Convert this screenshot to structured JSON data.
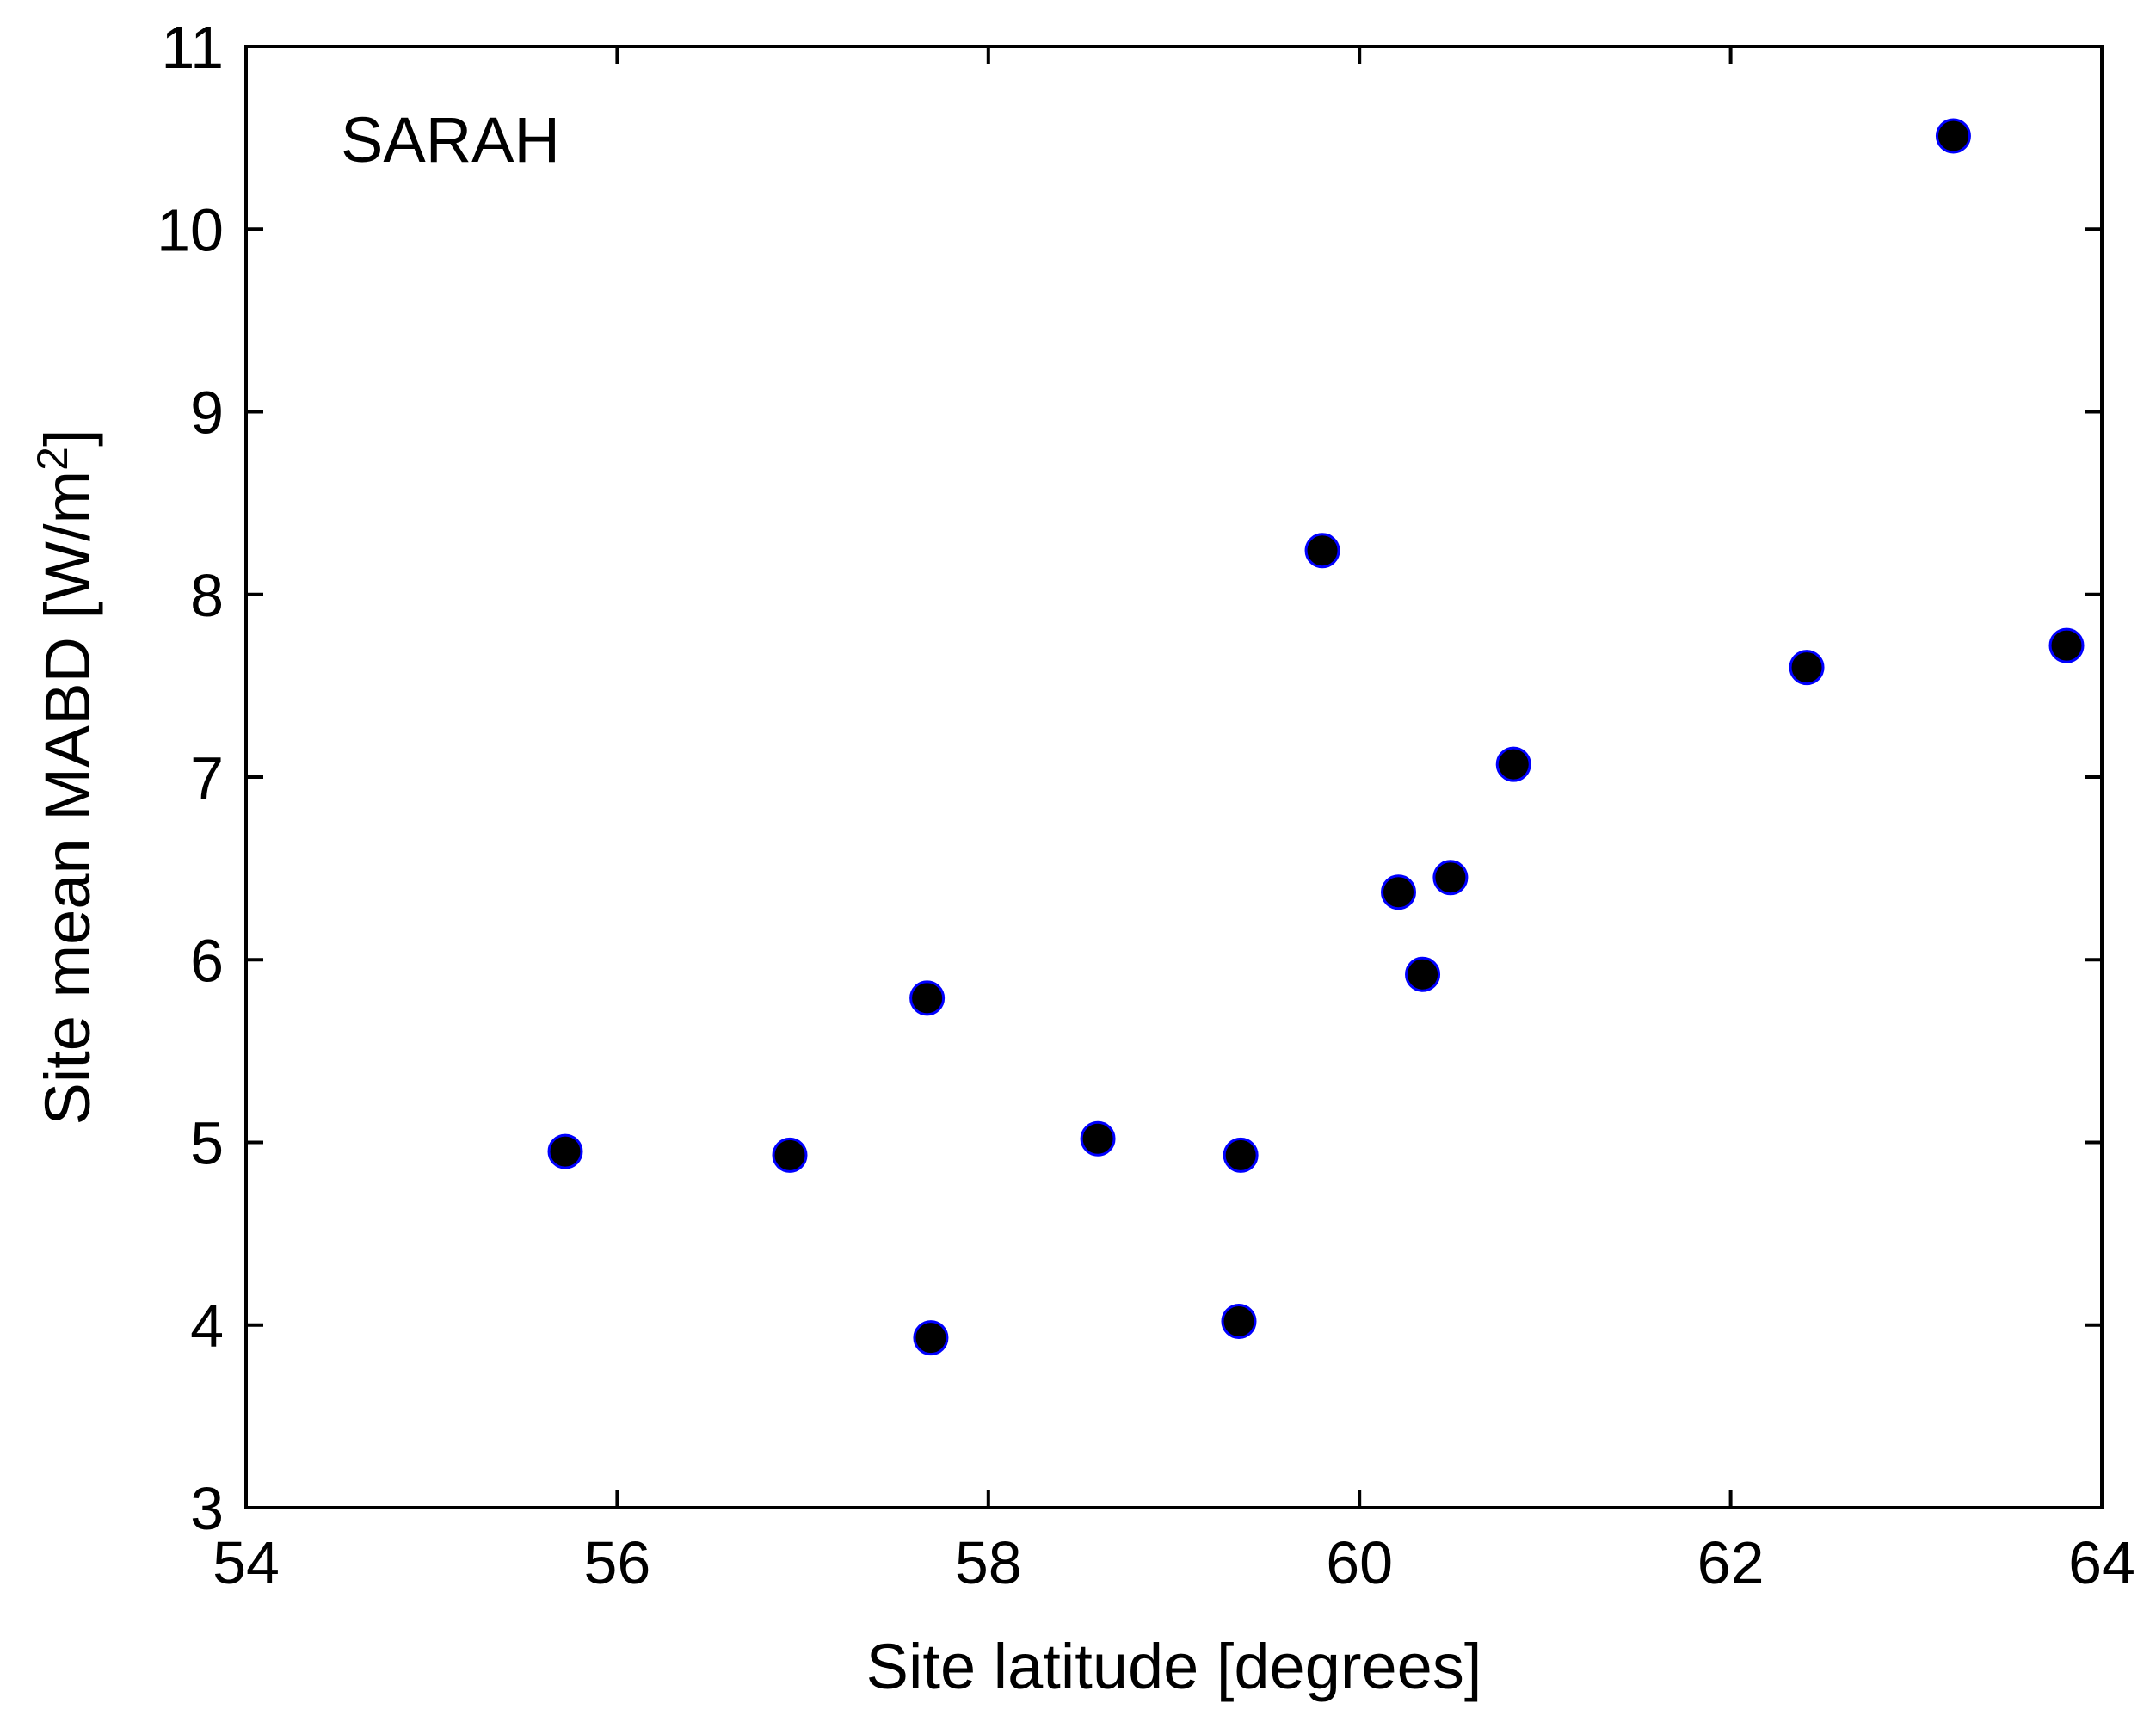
{
  "chart_data": {
    "type": "scatter",
    "title": "",
    "annotation": "SARAH",
    "xlabel": "Site latitude [degrees]",
    "ylabel_text": "Site mean MABD [W/m",
    "ylabel_superscript": "2",
    "ylabel_suffix": "]",
    "xlim": [
      54,
      64
    ],
    "ylim": [
      3,
      11
    ],
    "xticks": [
      54,
      56,
      58,
      60,
      62,
      64
    ],
    "yticks": [
      3,
      4,
      5,
      6,
      7,
      8,
      9,
      10,
      11
    ],
    "grid": false,
    "legend": "none",
    "marker_fill": "#000000",
    "marker_edge": "#0000ff",
    "series": [
      {
        "x": [
          55.72,
          56.93,
          57.67,
          57.69,
          58.59,
          59.36,
          59.35,
          59.8,
          60.21,
          60.34,
          60.49,
          60.83,
          62.41,
          63.2,
          63.81
        ],
        "y": [
          4.95,
          4.93,
          5.79,
          3.93,
          5.02,
          4.93,
          4.02,
          8.24,
          6.37,
          5.92,
          6.45,
          7.07,
          7.6,
          10.51,
          7.72
        ]
      }
    ]
  }
}
